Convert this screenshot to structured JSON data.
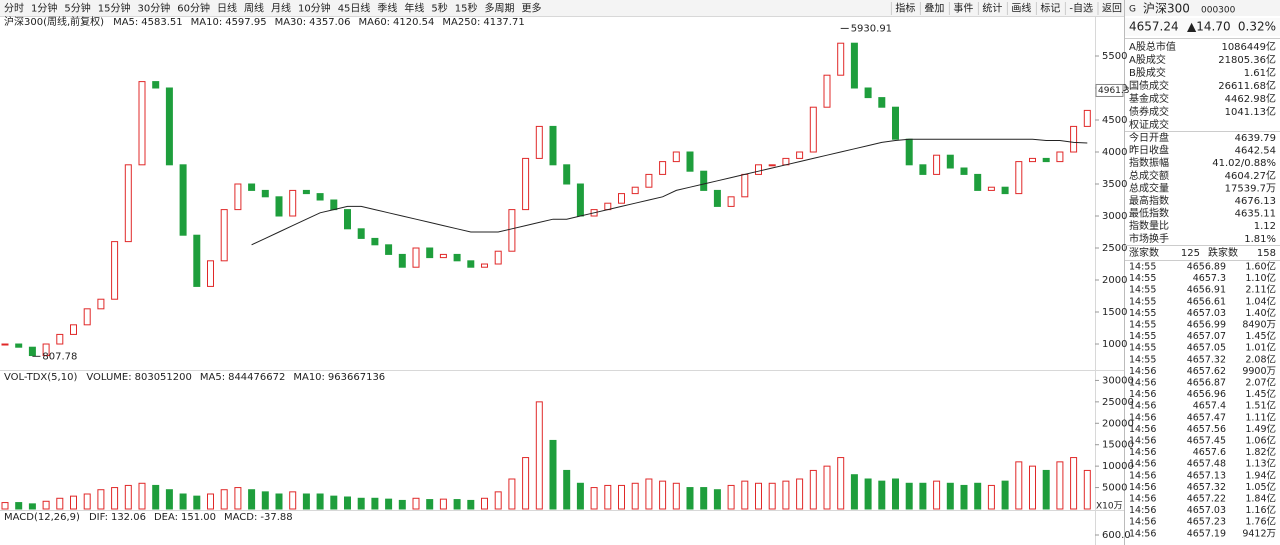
{
  "toolbar": {
    "periods": [
      "分时",
      "1分钟",
      "5分钟",
      "15分钟",
      "30分钟",
      "60分钟",
      "日线",
      "周线",
      "月线",
      "10分钟",
      "45日线",
      "季线",
      "年线",
      "5秒",
      "15秒",
      "多周期",
      "更多"
    ],
    "active": 7,
    "tools": [
      "指标",
      "叠加",
      "事件",
      "统计",
      "画线",
      "标记",
      "-自选",
      "返回"
    ]
  },
  "chart_data": [
    {
      "type": "candlestick",
      "legend": [
        {
          "name": "沪深300(周线,前复权)",
          "color": "#222222"
        },
        {
          "name": "MA5:",
          "value": 4583.51,
          "color": "#222222"
        },
        {
          "name": "MA10:",
          "value": 4597.95,
          "color": "#1a5fd6"
        },
        {
          "name": "MA30:",
          "value": 4357.06,
          "color": "#c020b0"
        },
        {
          "name": "MA60:",
          "value": 4120.54,
          "color": "#777777"
        },
        {
          "name": "MA250:",
          "value": 4137.71,
          "color": "#222222"
        }
      ],
      "values": [
        1000,
        950,
        820,
        1000,
        1150,
        1300,
        1550,
        1700,
        2600,
        3800,
        5100,
        5000,
        3800,
        2700,
        1900,
        2300,
        3100,
        3500,
        3400,
        3300,
        3000,
        3400,
        3350,
        3250,
        3100,
        2800,
        2650,
        2550,
        2400,
        2200,
        2500,
        2350,
        2400,
        2300,
        2200,
        2250,
        2450,
        3100,
        3900,
        4400,
        3800,
        3500,
        3000,
        3100,
        3200,
        3350,
        3450,
        3650,
        3850,
        4000,
        3700,
        3400,
        3150,
        3300,
        3650,
        3800,
        3800,
        3900,
        4000,
        4700,
        5200,
        5700,
        5000,
        4850,
        4700,
        4200,
        3800,
        3650,
        3950,
        3750,
        3650,
        3400,
        3450,
        3350,
        3850,
        3900,
        3850,
        4000,
        4400,
        4650
      ],
      "up_color": "#e02828",
      "down_color": "#1e9e3c",
      "ma_line": {
        "color": "#222222",
        "values": [
          null,
          null,
          null,
          null,
          null,
          null,
          null,
          null,
          null,
          null,
          null,
          null,
          null,
          null,
          null,
          null,
          null,
          null,
          2550,
          2650,
          2750,
          2850,
          2950,
          3050,
          3100,
          3150,
          3150,
          3100,
          3050,
          3000,
          2950,
          2900,
          2850,
          2800,
          2750,
          2750,
          2750,
          2800,
          2850,
          2900,
          2950,
          2950,
          3000,
          3050,
          3100,
          3150,
          3200,
          3250,
          3300,
          3400,
          3450,
          3500,
          3550,
          3600,
          3650,
          3700,
          3750,
          3800,
          3850,
          3900,
          3950,
          4000,
          4050,
          4100,
          4150,
          4180,
          4200,
          4200,
          4200,
          4200,
          4200,
          4200,
          4200,
          4200,
          4200,
          4200,
          4180,
          4180,
          4150,
          4140
        ]
      },
      "high_mark": 5930.91,
      "low_mark": 807.78,
      "cursor_price": 4961.3,
      "ylim": [
        594,
        6125
      ],
      "yticks": [
        1000,
        1500,
        2000,
        2500,
        3000,
        3500,
        4000,
        4500,
        5000,
        5500
      ]
    },
    {
      "type": "bar",
      "legend": [
        {
          "name": "VOL-TDX(5,10)",
          "color": "#222222"
        },
        {
          "name": "VOLUME:",
          "value": 803051200,
          "color": "#222222"
        },
        {
          "name": "MA5:",
          "value": 844476672,
          "color": "#222222"
        },
        {
          "name": "MA10:",
          "value": 963667136,
          "color": "#1a5fd6"
        }
      ],
      "values": [
        1500,
        1500,
        1200,
        1800,
        2500,
        3000,
        3500,
        4500,
        5000,
        5500,
        6000,
        5500,
        4500,
        3500,
        3000,
        3500,
        4500,
        5000,
        4500,
        4000,
        3500,
        4000,
        3500,
        3500,
        3000,
        2800,
        2500,
        2500,
        2300,
        2000,
        2500,
        2200,
        2300,
        2200,
        2000,
        2500,
        4000,
        7000,
        12000,
        25000,
        16000,
        9000,
        6000,
        5000,
        5500,
        5500,
        6000,
        7000,
        6500,
        6000,
        5000,
        5000,
        4500,
        5500,
        6500,
        6000,
        6000,
        6500,
        7000,
        9000,
        10000,
        12000,
        8000,
        7000,
        6500,
        7000,
        6000,
        6000,
        6500,
        6000,
        5500,
        6000,
        5500,
        6500,
        11000,
        10000,
        9000,
        11000,
        12000,
        9000
      ],
      "unit": "X10万",
      "ylim": [
        0,
        32200
      ],
      "yticks": [
        5000,
        10000,
        15000,
        20000,
        25000,
        30000
      ]
    },
    {
      "type": "macd",
      "legend": [
        {
          "name": "MACD(12,26,9)",
          "color": "#222222"
        },
        {
          "name": "DIF:",
          "value": 132.06,
          "color": "#222222"
        },
        {
          "name": "DEA:",
          "value": 151.0,
          "value_label": "151.00",
          "color": "#1a5fd6"
        },
        {
          "name": "MACD:",
          "value": -37.88,
          "color": "#c020b0"
        }
      ],
      "ylim": [
        400,
        1080
      ],
      "yticks": [
        {
          "value": 600,
          "label": "600.0"
        }
      ]
    }
  ],
  "quote": {
    "badge": "G",
    "name": "沪深300",
    "code": "000300",
    "price": 4657.24,
    "change": "▲14.70",
    "pct": "0.32%",
    "market": [
      [
        "A股总市值",
        "1086449亿"
      ],
      [
        "A股成交",
        "21805.36亿"
      ],
      [
        "B股成交",
        "1.61亿"
      ],
      [
        "国债成交",
        "26611.68亿"
      ],
      [
        "基金成交",
        "4462.98亿"
      ],
      [
        "债券成交",
        "1041.13亿"
      ],
      [
        "权证成交"
      ]
    ],
    "stats": [
      [
        "今日开盘",
        4639.79
      ],
      [
        "昨日收盘",
        4642.54
      ],
      [
        "指数振幅",
        "41.02/0.88%"
      ],
      [
        "总成交额",
        "4604.27亿"
      ],
      [
        "总成交量",
        "17539.7万"
      ],
      [
        "最高指数",
        4676.13
      ],
      [
        "最低指数",
        4635.11
      ],
      [
        "指数量比",
        1.12
      ],
      [
        "市场换手",
        "1.81%"
      ]
    ],
    "breadth": {
      "up_label": "涨家数",
      "up": 125,
      "down_label": "跌家数",
      "down": 158
    },
    "ticks": [
      [
        "14:55",
        4656.89,
        "1.60亿"
      ],
      [
        "14:55",
        4657.3,
        "1.10亿"
      ],
      [
        "14:55",
        4656.91,
        "2.11亿"
      ],
      [
        "14:55",
        4656.61,
        "1.04亿"
      ],
      [
        "14:55",
        4657.03,
        "1.40亿"
      ],
      [
        "14:55",
        4656.99,
        "8490万"
      ],
      [
        "14:55",
        4657.07,
        "1.45亿"
      ],
      [
        "14:55",
        4657.05,
        "1.01亿"
      ],
      [
        "14:55",
        4657.32,
        "2.08亿"
      ],
      [
        "14:56",
        4657.62,
        "9900万"
      ],
      [
        "14:56",
        4656.87,
        "2.07亿"
      ],
      [
        "14:56",
        4656.96,
        "1.45亿"
      ],
      [
        "14:56",
        4657.4,
        "1.51亿"
      ],
      [
        "14:56",
        4657.47,
        "1.11亿"
      ],
      [
        "14:56",
        4657.56,
        "1.49亿"
      ],
      [
        "14:56",
        4657.45,
        "1.06亿"
      ],
      [
        "14:56",
        4657.6,
        "1.82亿"
      ],
      [
        "14:56",
        4657.48,
        "1.13亿"
      ],
      [
        "14:56",
        4657.13,
        "1.94亿"
      ],
      [
        "14:56",
        4657.32,
        "1.05亿"
      ],
      [
        "14:56",
        4657.22,
        "1.84亿"
      ],
      [
        "14:56",
        4657.03,
        "1.16亿"
      ],
      [
        "14:56",
        4657.23,
        "1.76亿"
      ],
      [
        "14:56",
        4657.19,
        "9412万"
      ]
    ]
  }
}
